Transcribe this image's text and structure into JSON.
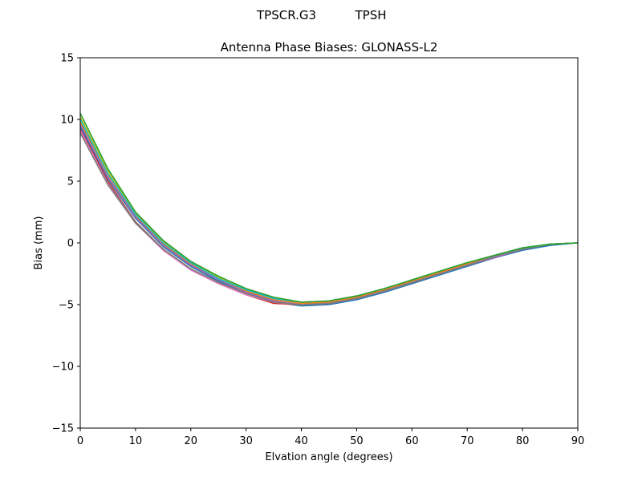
{
  "figure": {
    "suptitle_left": "TPSCR.G3",
    "suptitle_right": "TPSH"
  },
  "chart_data": {
    "type": "line",
    "title": "Antenna Phase Biases: GLONASS-L2",
    "xlabel": "Elvation angle (degrees)",
    "ylabel": "Bias (mm)",
    "xlim": [
      0,
      90
    ],
    "ylim": [
      -15,
      15
    ],
    "xticks": [
      "0",
      "10",
      "20",
      "30",
      "40",
      "50",
      "60",
      "70",
      "80",
      "90"
    ],
    "yticks": [
      "15",
      "10",
      "5",
      "0",
      "−5",
      "−10",
      "−15"
    ],
    "grid": false,
    "legend": "none",
    "x": [
      0,
      5,
      10,
      15,
      20,
      25,
      30,
      35,
      40,
      45,
      50,
      55,
      60,
      65,
      70,
      75,
      80,
      85,
      90
    ],
    "series": [
      {
        "color": "#1f77b4",
        "values": [
          9.4,
          5.2,
          2.0,
          -0.3,
          -1.9,
          -3.1,
          -4.1,
          -4.8,
          -5.1,
          -5.0,
          -4.6,
          -4.0,
          -3.3,
          -2.6,
          -1.9,
          -1.2,
          -0.6,
          -0.2,
          0.0
        ]
      },
      {
        "color": "#ff7f0e",
        "values": [
          9.8,
          5.5,
          2.2,
          -0.1,
          -1.7,
          -2.9,
          -3.9,
          -4.6,
          -4.9,
          -4.8,
          -4.4,
          -3.8,
          -3.1,
          -2.4,
          -1.7,
          -1.1,
          -0.5,
          -0.1,
          0.0
        ]
      },
      {
        "color": "#d62728",
        "values": [
          9.2,
          5.0,
          1.7,
          -0.5,
          -2.1,
          -3.3,
          -4.2,
          -4.9,
          -5.0,
          -4.9,
          -4.5,
          -3.9,
          -3.2,
          -2.5,
          -1.8,
          -1.1,
          -0.5,
          -0.1,
          0.0
        ]
      },
      {
        "color": "#9467bd",
        "values": [
          9.6,
          5.3,
          2.1,
          -0.2,
          -1.8,
          -3.0,
          -4.0,
          -4.7,
          -5.0,
          -4.9,
          -4.5,
          -3.9,
          -3.2,
          -2.5,
          -1.8,
          -1.2,
          -0.5,
          -0.1,
          0.0
        ]
      },
      {
        "color": "#8c564b",
        "values": [
          9.0,
          4.9,
          1.7,
          -0.5,
          -2.1,
          -3.2,
          -4.1,
          -4.8,
          -5.0,
          -4.9,
          -4.5,
          -3.9,
          -3.2,
          -2.5,
          -1.8,
          -1.1,
          -0.5,
          -0.1,
          0.0
        ]
      },
      {
        "color": "#e377c2",
        "values": [
          9.1,
          4.8,
          1.6,
          -0.6,
          -2.2,
          -3.3,
          -4.2,
          -4.8,
          -5.0,
          -4.9,
          -4.5,
          -3.9,
          -3.2,
          -2.5,
          -1.8,
          -1.1,
          -0.5,
          -0.1,
          0.0
        ]
      },
      {
        "color": "#7f7f7f",
        "values": [
          8.9,
          4.7,
          1.6,
          -0.5,
          -2.1,
          -3.2,
          -4.1,
          -4.8,
          -5.0,
          -4.9,
          -4.5,
          -3.9,
          -3.2,
          -2.5,
          -1.8,
          -1.1,
          -0.5,
          -0.1,
          0.0
        ]
      },
      {
        "color": "#bcbd22",
        "values": [
          10.2,
          5.8,
          2.4,
          0.1,
          -1.5,
          -2.8,
          -3.8,
          -4.5,
          -4.8,
          -4.7,
          -4.3,
          -3.7,
          -3.0,
          -2.3,
          -1.6,
          -1.0,
          -0.4,
          -0.1,
          0.0
        ]
      },
      {
        "color": "#17becf",
        "values": [
          10.0,
          5.6,
          2.3,
          0.0,
          -1.6,
          -2.9,
          -3.8,
          -4.5,
          -4.8,
          -4.7,
          -4.3,
          -3.7,
          -3.0,
          -2.3,
          -1.6,
          -1.0,
          -0.4,
          -0.1,
          0.0
        ]
      },
      {
        "color": "#2ca02c",
        "values": [
          10.5,
          6.0,
          2.5,
          0.2,
          -1.5,
          -2.7,
          -3.7,
          -4.4,
          -4.8,
          -4.7,
          -4.3,
          -3.7,
          -3.0,
          -2.3,
          -1.6,
          -1.0,
          -0.4,
          -0.1,
          0.0
        ]
      }
    ]
  }
}
